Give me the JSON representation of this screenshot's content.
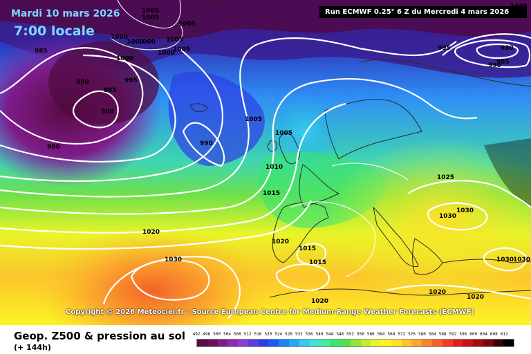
{
  "header": {
    "date": "Mardi 10 mars 2026",
    "time": "7:00 locale",
    "run_info": "Run ECMWF 0.25° 6 Z du Mercredi 4 mars 2026"
  },
  "copyright": "Copyright © 2026 Meteociel.fr - Source European Centre for Medium-Range Weather Forecasts (ECMWF)",
  "footer": {
    "product": "Geop. Z500 & pression au sol",
    "lead_time": "(+ 144h)"
  },
  "legend": {
    "labels": [
      "492",
      "496",
      "500",
      "504",
      "508",
      "512",
      "516",
      "520",
      "524",
      "528",
      "532",
      "536",
      "540",
      "544",
      "548",
      "552",
      "556",
      "560",
      "564",
      "568",
      "572",
      "576",
      "580",
      "584",
      "588",
      "592",
      "596",
      "600",
      "604",
      "608",
      "612"
    ],
    "colors": [
      "#5a0b45",
      "#6b0e5e",
      "#7d1c8a",
      "#8a2bb0",
      "#8b3fd1",
      "#5b3fd9",
      "#2d3ee3",
      "#1c5cf2",
      "#1f83f7",
      "#23a9f5",
      "#36ccef",
      "#44e1d5",
      "#45eaa4",
      "#39e472",
      "#55e14a",
      "#8fe43a",
      "#c3ec2f",
      "#e9f528",
      "#fcf524",
      "#fde02a",
      "#fcc52c",
      "#faa52d",
      "#f7852b",
      "#f46228",
      "#ef3d24",
      "#e21f1e",
      "#c71217",
      "#a60a12",
      "#7a0608",
      "#3a0204",
      "#000000"
    ]
  },
  "map_labels": {
    "isobars": [
      {
        "v": "1005"
      },
      {
        "v": "1005"
      },
      {
        "v": "1005"
      },
      {
        "v": "1005"
      },
      {
        "v": "1005"
      },
      {
        "v": "1000"
      },
      {
        "v": "1000"
      },
      {
        "v": "1000"
      },
      {
        "v": "1000"
      },
      {
        "v": "1000"
      },
      {
        "v": "985"
      },
      {
        "v": "985"
      },
      {
        "v": "990"
      },
      {
        "v": "995"
      },
      {
        "v": "980"
      },
      {
        "v": "990"
      },
      {
        "v": "995"
      },
      {
        "v": "980"
      },
      {
        "v": "985"
      },
      {
        "v": "990"
      },
      {
        "v": "1005"
      },
      {
        "v": "990"
      },
      {
        "v": "1005"
      },
      {
        "v": "1010"
      },
      {
        "v": "1015"
      },
      {
        "v": "1025"
      },
      {
        "v": "1030"
      },
      {
        "v": "1030"
      },
      {
        "v": "1020"
      },
      {
        "v": "1030"
      },
      {
        "v": "1020"
      },
      {
        "v": "1015"
      },
      {
        "v": "1015"
      },
      {
        "v": "1030"
      },
      {
        "v": "1030"
      },
      {
        "v": "1020"
      },
      {
        "v": "1020"
      },
      {
        "v": "1020"
      },
      {
        "v": "1005"
      }
    ]
  }
}
